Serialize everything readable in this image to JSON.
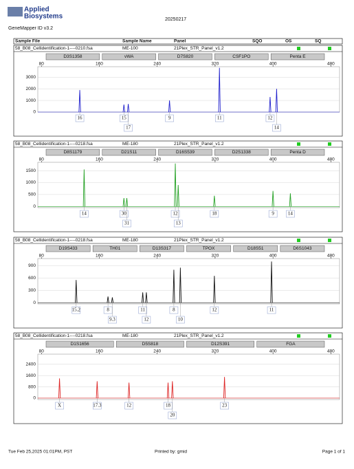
{
  "header": {
    "logo_top": "Applied",
    "logo_bottom": "Biosystems",
    "software": "GeneMapper ID v3.2",
    "date": "20250217"
  },
  "table_header": [
    "Sample File",
    "Sample Name",
    "Panel",
    "SQO",
    "OS",
    "SQ"
  ],
  "panels": [
    {
      "sample_file": "58_B08_Cellidentification-1----0210.fsa",
      "sample_name": "ME-100",
      "panel": "21Plex_STR_Panel_v1.2",
      "color": "#1f1fcc",
      "markers": [
        "D3S1358",
        "vWA",
        "D7S820",
        "CSF1PO",
        "Penta E"
      ],
      "xlim": [
        75,
        492
      ],
      "xticks": [
        80,
        160,
        240,
        320,
        400,
        480
      ],
      "ylim": [
        0,
        3900
      ],
      "yticks": [
        0,
        1000,
        2000,
        3000
      ],
      "peaks": [
        {
          "size": 133,
          "height": 1900,
          "allele": "16"
        },
        {
          "size": 194,
          "height": 650,
          "allele": "15"
        },
        {
          "size": 200,
          "height": 700,
          "allele": "17"
        },
        {
          "size": 257,
          "height": 1000,
          "allele": "9"
        },
        {
          "size": 326,
          "height": 3800,
          "allele": "11"
        },
        {
          "size": 396,
          "height": 1300,
          "allele": "12"
        },
        {
          "size": 405,
          "height": 2000,
          "allele": "14"
        }
      ]
    },
    {
      "sample_file": "58_B08_Cellidentification-1----0218.fsa",
      "sample_name": "ME-180",
      "panel": "21Plex_STR_Panel_v1.2",
      "color": "#22a022",
      "markers": [
        "D8S1179",
        "D21S11",
        "D16S539",
        "D2S1338",
        "Penta D"
      ],
      "xlim": [
        75,
        492
      ],
      "xticks": [
        80,
        160,
        240,
        320,
        400,
        480
      ],
      "ylim": [
        -50,
        1850
      ],
      "yticks": [
        0,
        500,
        1000,
        1500
      ],
      "peaks": [
        {
          "size": 139,
          "height": 1550,
          "allele": "14"
        },
        {
          "size": 194,
          "height": 350,
          "allele": "30"
        },
        {
          "size": 198,
          "height": 350,
          "allele": "31"
        },
        {
          "size": 265,
          "height": 1800,
          "allele": "12"
        },
        {
          "size": 269,
          "height": 900,
          "allele": "13"
        },
        {
          "size": 319,
          "height": 450,
          "allele": "18"
        },
        {
          "size": 400,
          "height": 650,
          "allele": "9"
        },
        {
          "size": 424,
          "height": 550,
          "allele": "14"
        }
      ]
    },
    {
      "sample_file": "58_B08_Cellidentification-1----0218.fsa",
      "sample_name": "ME-180",
      "panel": "21Plex_STR_Panel_v1.2",
      "color": "#111111",
      "markers": [
        "D19S433",
        "TH01",
        "D13S317",
        "TPOX",
        "D18S51",
        "D6S1043"
      ],
      "xlim": [
        75,
        492
      ],
      "xticks": [
        80,
        160,
        240,
        320,
        400,
        480
      ],
      "ylim": [
        -30,
        1070
      ],
      "yticks": [
        0,
        300,
        600,
        900
      ],
      "peaks": [
        {
          "size": 128,
          "height": 550,
          "allele": "15.2"
        },
        {
          "size": 172,
          "height": 150,
          "allele": "8"
        },
        {
          "size": 178,
          "height": 130,
          "allele": "9.3"
        },
        {
          "size": 220,
          "height": 250,
          "allele": "11"
        },
        {
          "size": 225,
          "height": 250,
          "allele": "12"
        },
        {
          "size": 263,
          "height": 800,
          "allele": "8"
        },
        {
          "size": 272,
          "height": 850,
          "allele": "10"
        },
        {
          "size": 319,
          "height": 650,
          "allele": "12"
        },
        {
          "size": 398,
          "height": 1000,
          "allele": "11"
        }
      ]
    },
    {
      "sample_file": "58_B08_Cellidentification-1----0218.fsa",
      "sample_name": "ME-180",
      "panel": "21Plex_STR_Panel_v1.2",
      "color": "#dd2222",
      "markers": [
        "D1S1656",
        "D5S818",
        "D12S391",
        "FGA"
      ],
      "xlim": [
        75,
        492
      ],
      "xticks": [
        80,
        160,
        240,
        320,
        400,
        480
      ],
      "ylim": [
        -100,
        3120
      ],
      "yticks": [
        0,
        800,
        1600,
        2400
      ],
      "peaks": [
        {
          "size": 105,
          "height": 1400,
          "allele": "X"
        },
        {
          "size": 157,
          "height": 1200,
          "allele": "17.3"
        },
        {
          "size": 201,
          "height": 1100,
          "allele": "12"
        },
        {
          "size": 255,
          "height": 1100,
          "allele": "18"
        },
        {
          "size": 261,
          "height": 1200,
          "allele": "20"
        },
        {
          "size": 333,
          "height": 1500,
          "allele": "23"
        }
      ]
    }
  ],
  "footer": {
    "timestamp": "Tue Feb 25,2025 01:01PM, PST",
    "printed_by": "Printed by: gmid",
    "page": "Page 1 of 1"
  }
}
